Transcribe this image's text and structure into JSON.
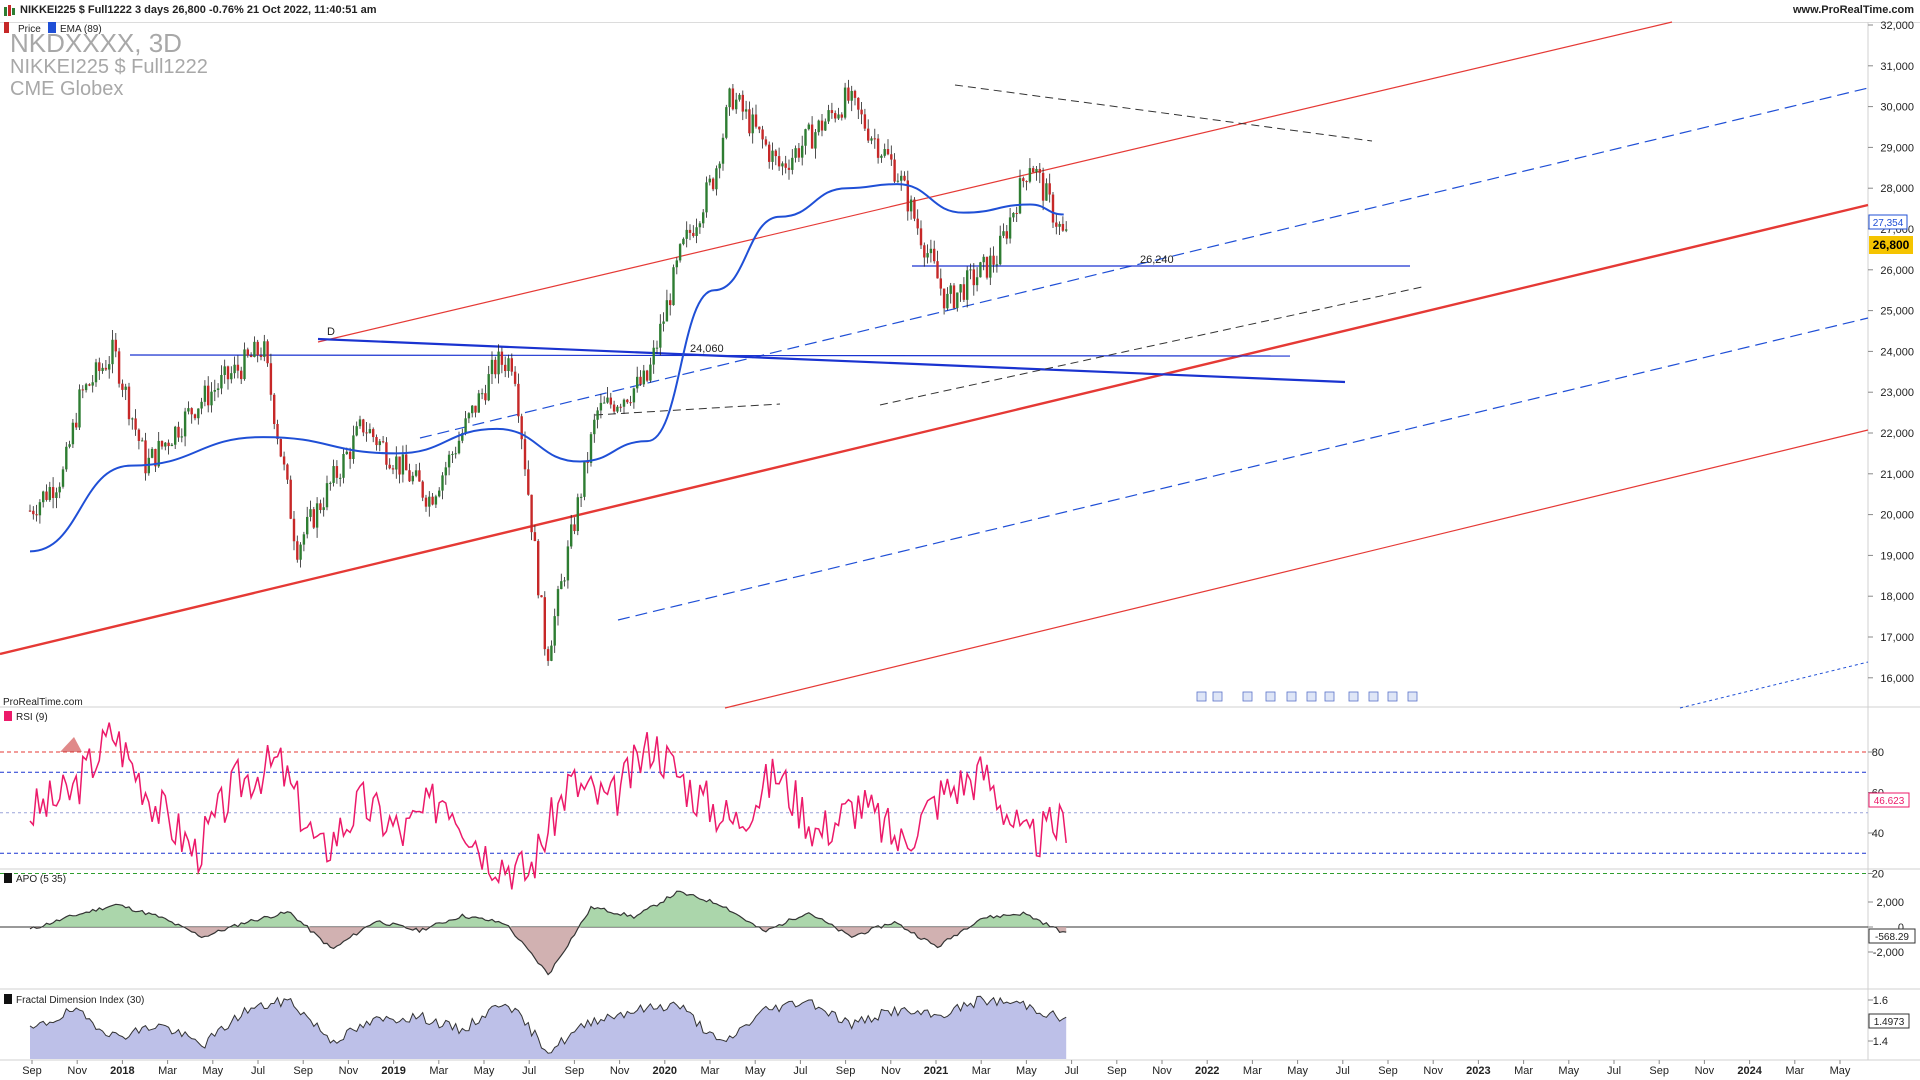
{
  "header": {
    "title": "NIKKEI225 $ Full1222 3 days 26,800 -0.76% 21 Oct 2022, 11:40:51 am",
    "brand": "www.ProRealTime.com"
  },
  "main_panel": {
    "watermark_symbol": "NKDXXXX, 3D",
    "watermark_name": "NIKKEI225 $ Full1222",
    "watermark_exchange": "CME Globex",
    "legend_price": "Price",
    "legend_ema": "EMA (89)",
    "source": "ProRealTime.com",
    "label_d": "D",
    "label_24060": "24,060",
    "label_26240": "26,240",
    "ema_badge": "27,354",
    "price_badge": "26,800",
    "y_ticks": [
      "32,000",
      "31,000",
      "30,000",
      "29,000",
      "28,000",
      "27,000",
      "26,000",
      "25,000",
      "24,000",
      "23,000",
      "22,000",
      "21,000",
      "20,000",
      "19,000",
      "18,000",
      "17,000",
      "16,000"
    ]
  },
  "rsi_panel": {
    "label": "RSI (9)",
    "badge": "46.623",
    "y_ticks": [
      "80",
      "60",
      "40",
      "20"
    ]
  },
  "apo_panel": {
    "label": "APO (5 35)",
    "badge": "-568.29",
    "y_ticks": [
      "2,000",
      "0",
      "-2,000"
    ]
  },
  "fdi_panel": {
    "label": "Fractal Dimension Index (30)",
    "badge": "1.4973",
    "y_ticks": [
      "1.6",
      "1.4"
    ]
  },
  "x_axis": {
    "labels": [
      "Sep",
      "Nov",
      "2018",
      "Mar",
      "May",
      "Jul",
      "Sep",
      "Nov",
      "2019",
      "Mar",
      "May",
      "Jul",
      "Sep",
      "Nov",
      "2020",
      "Mar",
      "May",
      "Jul",
      "Sep",
      "Nov",
      "2021",
      "Mar",
      "May",
      "Jul",
      "Sep",
      "Nov",
      "2022",
      "Mar",
      "May",
      "Jul",
      "Sep",
      "Nov",
      "2023",
      "Mar",
      "May",
      "Jul",
      "Sep",
      "Nov",
      "2024",
      "Mar",
      "May"
    ]
  },
  "colors": {
    "price_up": "#2e7d32",
    "price_down": "#c62828",
    "ema": "#1f4fd6",
    "channel_red": "#e53935",
    "trend_blue": "#1a33d0",
    "rsi": "#ec1a6a",
    "apo_line": "#333333",
    "apo_pos_fill": "#9ccf9c",
    "apo_neg_fill": "#c9a3a3",
    "fdi_fill": "#b6b9e6"
  },
  "chart_data": [
    {
      "type": "candlestick",
      "title": "NKDXXXX, 3D",
      "series": [
        {
          "name": "Price",
          "x": [
            "2017-08",
            "2017-10",
            "2017-11",
            "2018-01",
            "2018-03",
            "2018-06",
            "2018-10",
            "2018-12",
            "2019-04",
            "2019-08",
            "2019-12",
            "2020-01",
            "2020-03",
            "2020-06",
            "2020-09",
            "2020-11",
            "2021-01",
            "2021-02",
            "2021-05",
            "2021-09",
            "2021-12",
            "2022-03",
            "2022-06",
            "2022-08",
            "2022-10"
          ],
          "values": [
            20100,
            21000,
            22900,
            24000,
            21200,
            22700,
            24100,
            19200,
            22200,
            20400,
            23700,
            23800,
            16500,
            22500,
            23300,
            26400,
            28300,
            30300,
            28500,
            30200,
            28400,
            25200,
            26300,
            28700,
            26800
          ]
        },
        {
          "name": "EMA (89)",
          "x": [
            "2017-08",
            "2018-02",
            "2018-10",
            "2019-06",
            "2019-12",
            "2020-05",
            "2020-09",
            "2021-01",
            "2021-05",
            "2021-09",
            "2021-12",
            "2022-04",
            "2022-08",
            "2022-10"
          ],
          "values": [
            19100,
            21200,
            21900,
            21500,
            22100,
            21300,
            21800,
            25500,
            27300,
            28000,
            28100,
            27400,
            27600,
            27354
          ]
        }
      ],
      "levels": [
        24060,
        26240
      ],
      "ylim": [
        15500,
        32200
      ],
      "last_price": 26800,
      "last_ema": 27354
    },
    {
      "type": "line",
      "title": "RSI (9)",
      "series": [
        {
          "name": "RSI (9)",
          "values": [
            50,
            60,
            90,
            55,
            30,
            65,
            75,
            30,
            55,
            40,
            60,
            30,
            20,
            65,
            55,
            85,
            60,
            45,
            70,
            40,
            55,
            35,
            60,
            70,
            35,
            46.623
          ]
        }
      ],
      "ylim": [
        10,
        100
      ],
      "levels": [
        80,
        70,
        50,
        30,
        20
      ],
      "last": 46.623
    },
    {
      "type": "area",
      "title": "APO (5 35)",
      "series": [
        {
          "name": "APO (5 35)",
          "values": [
            -200,
            900,
            1800,
            800,
            -800,
            400,
            1200,
            -1800,
            500,
            -300,
            900,
            300,
            -3800,
            1600,
            800,
            2800,
            1800,
            -400,
            1200,
            -800,
            400,
            -1600,
            700,
            1100,
            -568.29
          ]
        }
      ],
      "ylim": [
        -4500,
        3000
      ],
      "last": -568.29
    },
    {
      "type": "area",
      "title": "Fractal Dimension Index (30)",
      "series": [
        {
          "name": "Fractal Dimension Index (30)",
          "values": [
            1.45,
            1.55,
            1.42,
            1.48,
            1.38,
            1.55,
            1.6,
            1.4,
            1.5,
            1.52,
            1.45,
            1.6,
            1.35,
            1.5,
            1.55,
            1.58,
            1.38,
            1.55,
            1.6,
            1.48,
            1.55,
            1.52,
            1.6,
            1.58,
            1.4973
          ]
        }
      ],
      "ylim": [
        1.3,
        1.7
      ],
      "last": 1.4973
    }
  ]
}
